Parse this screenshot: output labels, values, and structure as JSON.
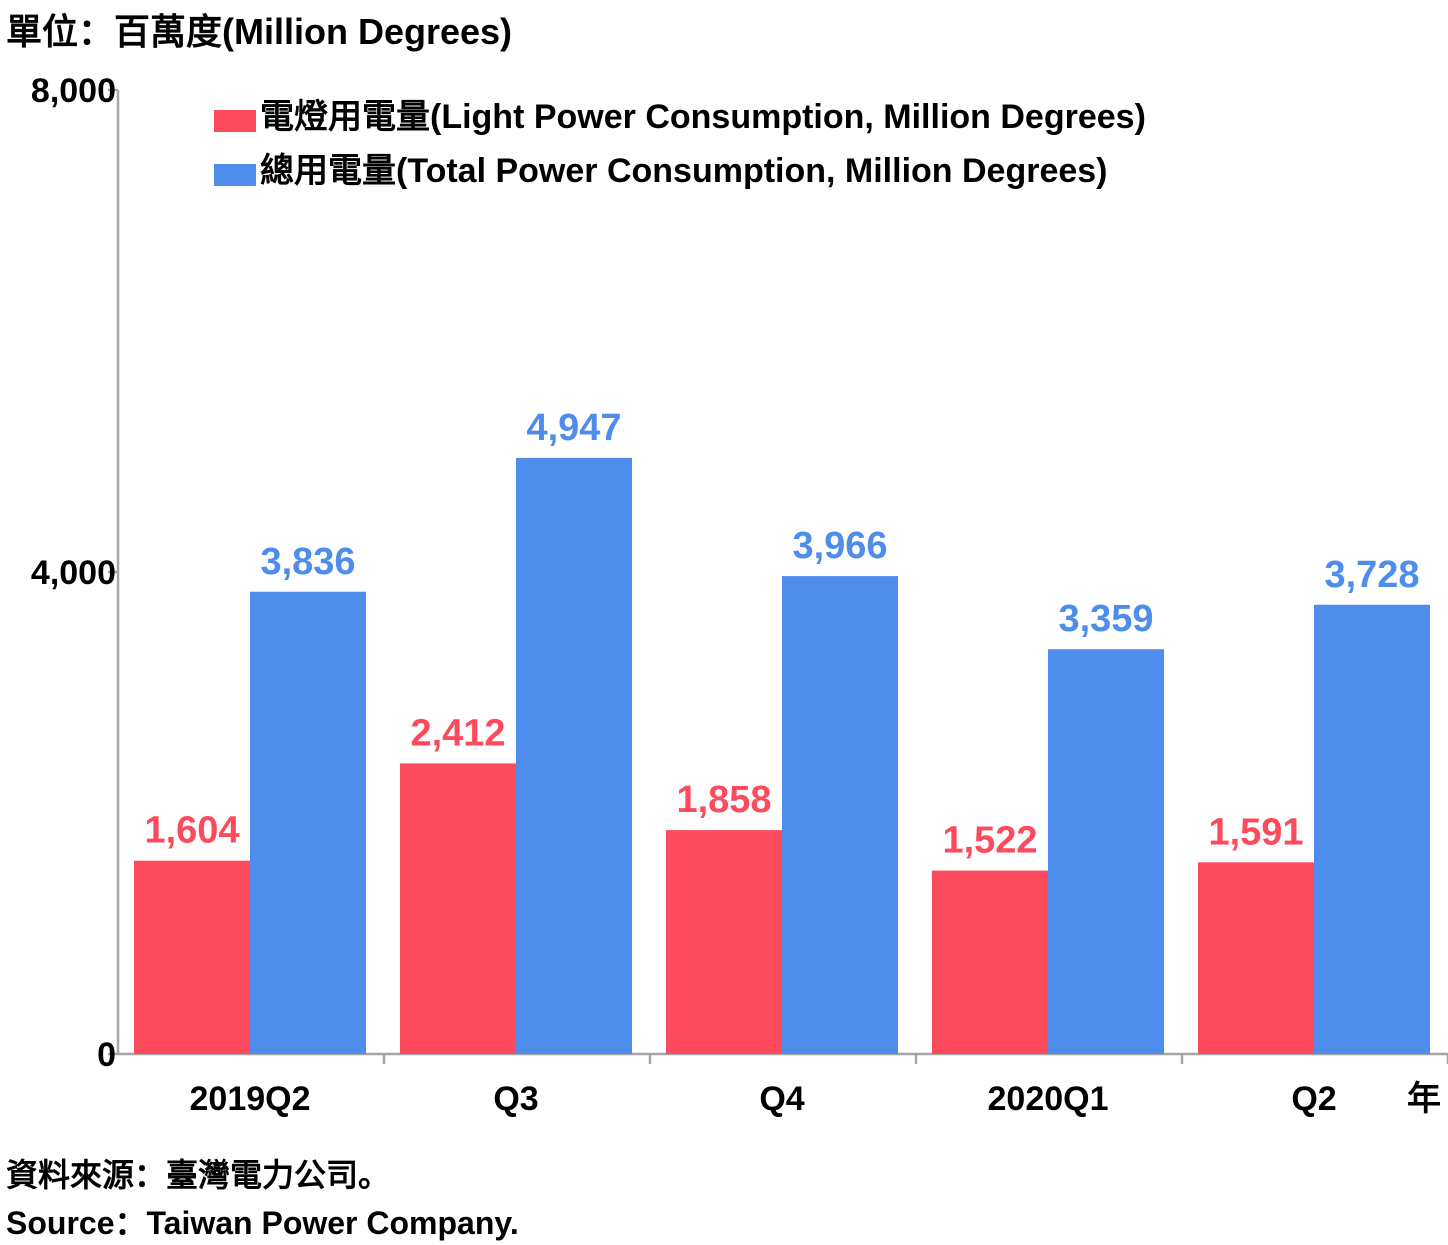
{
  "chart_data": {
    "type": "bar",
    "unit_title": "單位：百萬度(Million Degrees)",
    "categories": [
      "2019Q2",
      "Q3",
      "Q4",
      "2020Q1",
      "Q2"
    ],
    "x_unit": "年",
    "ylim": [
      0,
      8000
    ],
    "yticks": [
      0,
      4000,
      8000
    ],
    "ytick_labels": [
      "0",
      "4,000",
      "8,000"
    ],
    "grid": false,
    "legend_position": "top",
    "series": [
      {
        "name": "電燈用電量(Light Power Consumption, Million Degrees)",
        "color": "#fd4a5c",
        "values": [
          1604,
          2412,
          1858,
          1522,
          1591
        ],
        "labels": [
          "1,604",
          "2,412",
          "1,858",
          "1,522",
          "1,591"
        ]
      },
      {
        "name": "總用電量(Total Power Consumption, Million Degrees)",
        "color": "#4f8ded",
        "values": [
          3836,
          4947,
          3966,
          3359,
          3728
        ],
        "labels": [
          "3,836",
          "4,947",
          "3,966",
          "3,359",
          "3,728"
        ]
      }
    ],
    "source_zh": "資料來源：臺灣電力公司。",
    "source_en": "Source：Taiwan Power Company."
  }
}
